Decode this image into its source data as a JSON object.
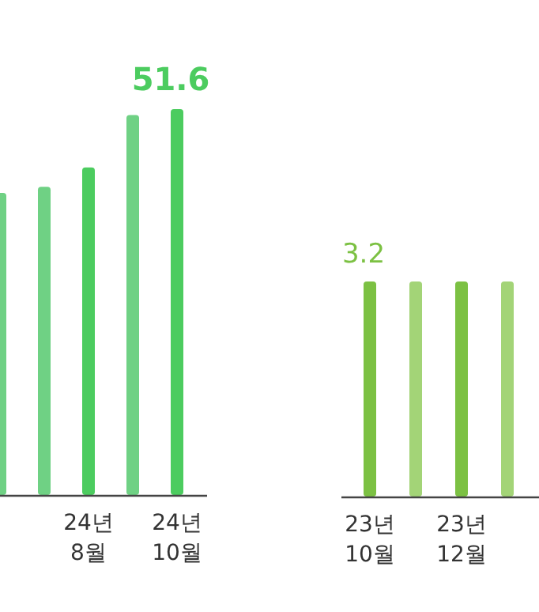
{
  "chart_data": [
    {
      "type": "bar",
      "categories": [
        null,
        null,
        "24년 8월",
        null,
        "24년 10월"
      ],
      "values": [
        40.4,
        41.2,
        43.8,
        50.8,
        51.6
      ],
      "colors": [
        "#6fd184",
        "#6fd184",
        "#4ccc5f",
        "#6fd184",
        "#4ccc5f"
      ],
      "value_labels": [
        null,
        null,
        null,
        null,
        "51.6"
      ]
    },
    {
      "type": "bar",
      "categories": [
        "23년 10월",
        null,
        "23년 12월",
        null
      ],
      "values": [
        3.2,
        3.2,
        3.2,
        3.2
      ],
      "colors": [
        "#7cc143",
        "#a3d477",
        "#7cc143",
        "#a3d477"
      ],
      "value_labels": [
        "3.2",
        null,
        null,
        null
      ]
    }
  ]
}
